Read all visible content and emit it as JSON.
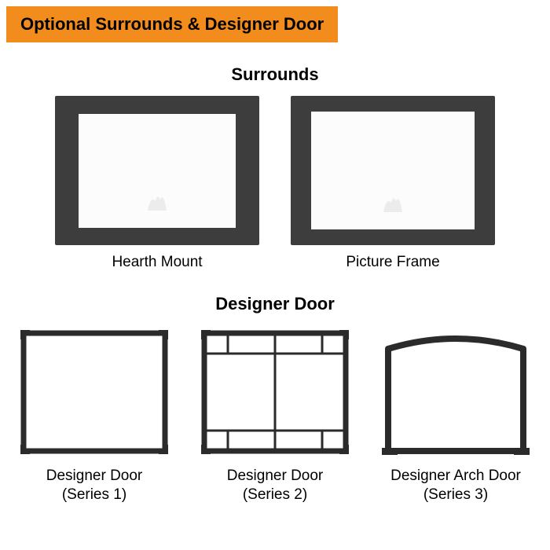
{
  "banner": {
    "text": "Optional Surrounds & Designer Door",
    "bg_color": "#f28c1c",
    "text_color": "#000000",
    "fontsize": 22,
    "fontweight": 700
  },
  "surrounds_section": {
    "title": "Surrounds",
    "title_fontsize": 22,
    "title_fontweight": 700,
    "items": [
      {
        "label": "Hearth Mount",
        "frame_color": "#3d3d3d",
        "inner_color": "#fcfcfc"
      },
      {
        "label": "Picture Frame",
        "frame_color": "#3d3d3d",
        "inner_color": "#fcfcfc"
      }
    ]
  },
  "doors_section": {
    "title": "Designer Door",
    "title_fontsize": 22,
    "title_fontweight": 700,
    "door_stroke_color": "#2b2b2b",
    "door_stroke_width": 7,
    "tab_width": 3,
    "items": [
      {
        "label": "Designer Door\n(Series 1)",
        "type": "series1"
      },
      {
        "label": "Designer Door\n(Series 2)",
        "type": "series2"
      },
      {
        "label": "Designer Arch Door\n(Series 3)",
        "type": "series3"
      }
    ]
  },
  "background_color": "#ffffff",
  "caption_fontsize": 19,
  "caption_color": "#000000"
}
